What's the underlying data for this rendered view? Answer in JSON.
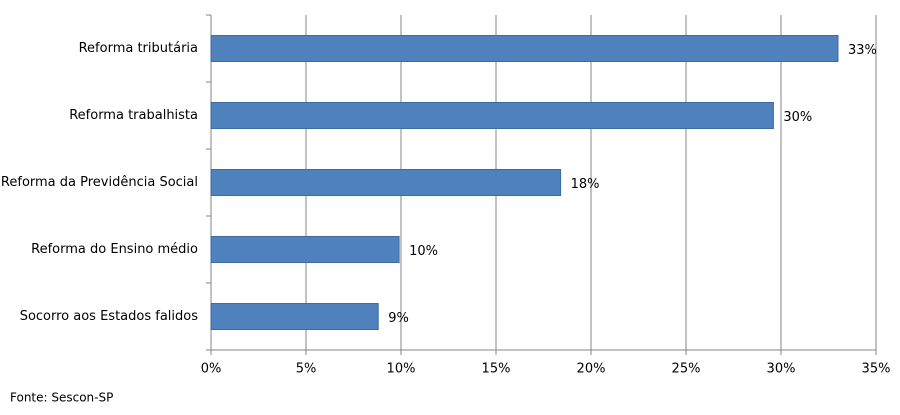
{
  "chart_data": {
    "type": "bar",
    "orientation": "horizontal",
    "categories": [
      "Reforma tributária",
      "Reforma trabalhista",
      "Reforma da Previdência Social",
      "Reforma do Ensino médio",
      "Socorro aos Estados falidos"
    ],
    "values": [
      33,
      29.6,
      18.4,
      9.9,
      8.8
    ],
    "value_labels": [
      "33%",
      "30%",
      "18%",
      "10%",
      "9%"
    ],
    "color": "#4f81bd",
    "xlim": [
      0,
      35
    ],
    "xticks": [
      {
        "value": 0,
        "label": "0%"
      },
      {
        "value": 5,
        "label": "5%"
      },
      {
        "value": 10,
        "label": "10%"
      },
      {
        "value": 15,
        "label": "15%"
      },
      {
        "value": 20,
        "label": "20%"
      },
      {
        "value": 25,
        "label": "25%"
      },
      {
        "value": 30,
        "label": "30%"
      },
      {
        "value": 35,
        "label": "35%"
      }
    ],
    "grid": true,
    "source": "Fonte: Sescon-SP"
  }
}
